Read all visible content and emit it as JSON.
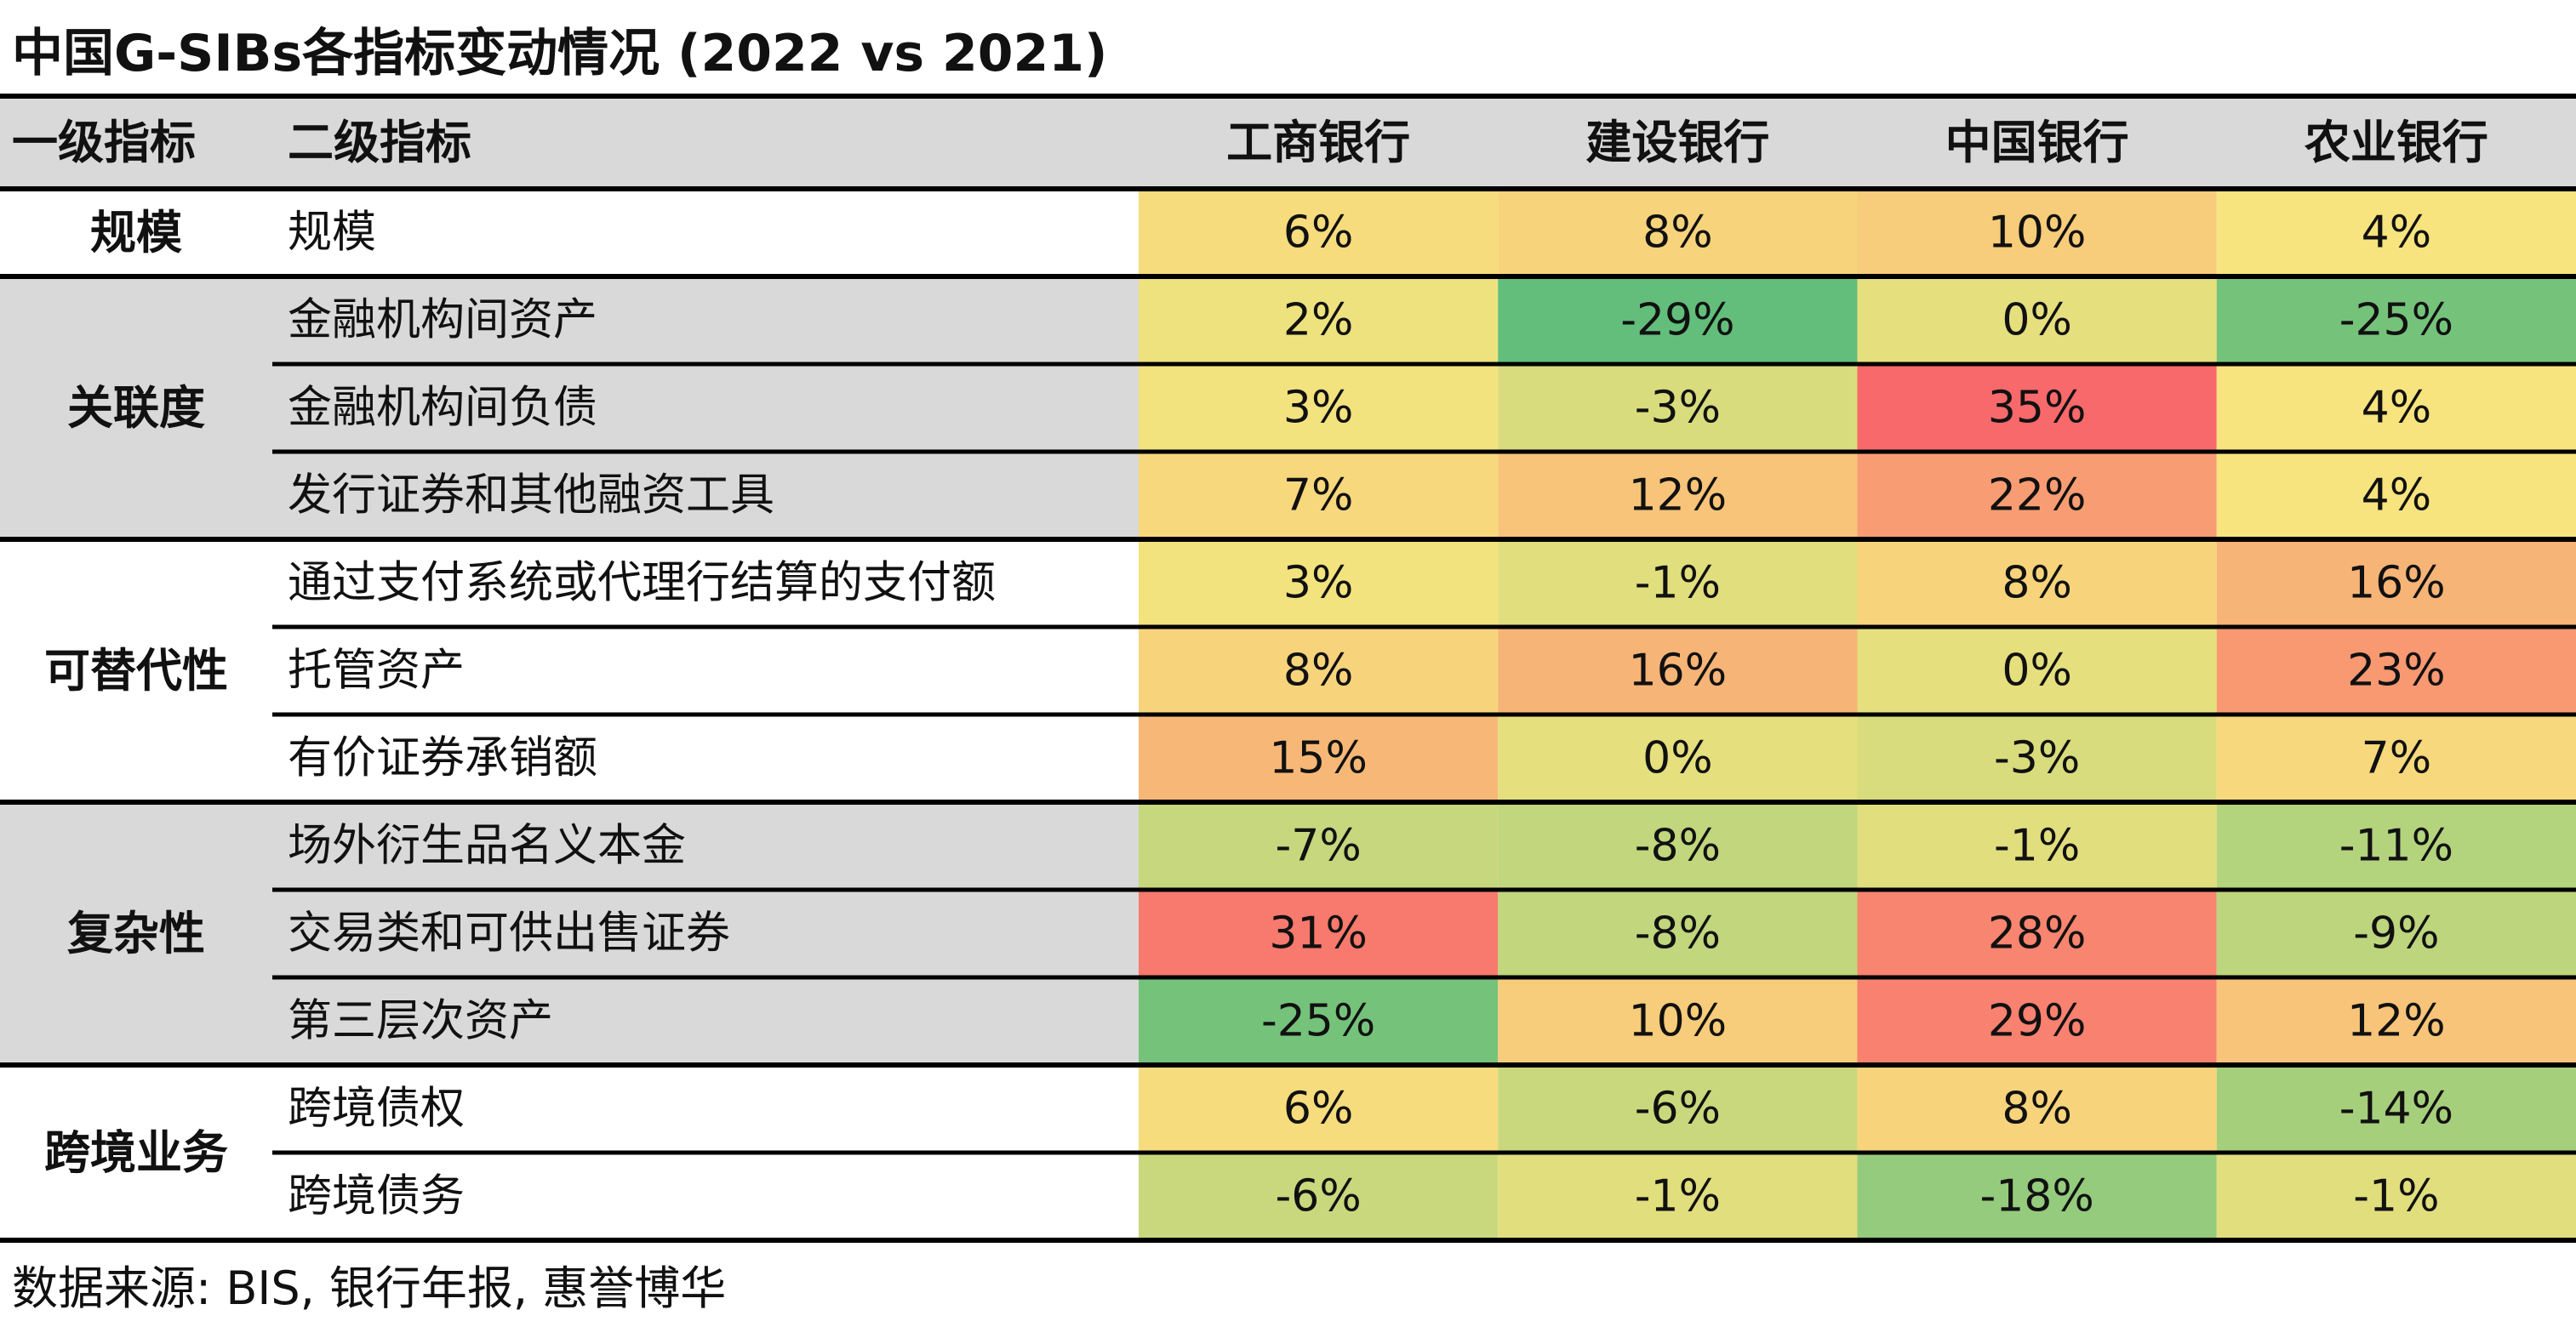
{
  "title": "中国G-SIBs各指标变动情况 (2022 vs 2021)",
  "source": "数据来源: BIS, 银行年报, 惠誉博华",
  "chart_data": {
    "type": "heatmap",
    "title": "中国G-SIBs各指标变动情况 (2022 vs 2021)",
    "columns": [
      "一级指标",
      "二级指标",
      "工商银行",
      "建设银行",
      "中国银行",
      "农业银行"
    ],
    "banks": [
      "工商银行",
      "建设银行",
      "中国银行",
      "农业银行"
    ],
    "groups": [
      {
        "name": "规模",
        "rows": [
          {
            "indicator": "规模",
            "values": [
              6,
              8,
              10,
              4
            ]
          }
        ]
      },
      {
        "name": "关联度",
        "rows": [
          {
            "indicator": "金融机构间资产",
            "values": [
              2,
              -29,
              0,
              -25
            ]
          },
          {
            "indicator": "金融机构间负债",
            "values": [
              3,
              -3,
              35,
              4
            ]
          },
          {
            "indicator": "发行证券和其他融资工具",
            "values": [
              7,
              12,
              22,
              4
            ]
          }
        ]
      },
      {
        "name": "可替代性",
        "rows": [
          {
            "indicator": "通过支付系统或代理行结算的支付额",
            "values": [
              3,
              -1,
              8,
              16
            ]
          },
          {
            "indicator": "托管资产",
            "values": [
              8,
              16,
              0,
              23
            ]
          },
          {
            "indicator": "有价证券承销额",
            "values": [
              15,
              0,
              -3,
              7
            ]
          }
        ]
      },
      {
        "name": "复杂性",
        "rows": [
          {
            "indicator": "场外衍生品名义本金",
            "values": [
              -7,
              -8,
              -1,
              -11
            ]
          },
          {
            "indicator": "交易类和可供出售证券",
            "values": [
              31,
              -8,
              28,
              -9
            ]
          },
          {
            "indicator": "第三层次资产",
            "values": [
              -25,
              10,
              29,
              12
            ]
          }
        ]
      },
      {
        "name": "跨境业务",
        "rows": [
          {
            "indicator": "跨境债权",
            "values": [
              6,
              -6,
              8,
              -14
            ]
          },
          {
            "indicator": "跨境债务",
            "values": [
              -6,
              -1,
              -18,
              -1
            ]
          }
        ]
      }
    ],
    "value_unit": "%",
    "colors": {
      "header_bg": "#d9d9d9",
      "shaded_group_bg": "#d9d9d9",
      "plain_group_bg": "#ffffff",
      "scale_low": "#63be7b",
      "scale_mid": "#f7e47e",
      "scale_high": "#f8696b",
      "border": "#000000"
    }
  }
}
